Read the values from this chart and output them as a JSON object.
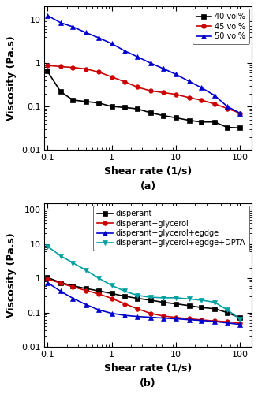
{
  "panel_a": {
    "title": "(a)",
    "xlabel": "Shear rate (1/s)",
    "ylabel": "Viscosity (Pa.s)",
    "xlim": [
      0.09,
      150
    ],
    "ylim": [
      0.01,
      20
    ],
    "yticks": [
      0.01,
      0.1,
      1,
      10
    ],
    "xticks": [
      0.1,
      1,
      10,
      100
    ],
    "series": [
      {
        "label": "40 vol%",
        "color": "#000000",
        "marker": "s",
        "x": [
          0.1,
          0.16,
          0.25,
          0.4,
          0.63,
          1.0,
          1.6,
          2.5,
          4.0,
          6.3,
          10,
          16,
          25,
          40,
          63,
          100
        ],
        "y": [
          0.65,
          0.22,
          0.14,
          0.13,
          0.12,
          0.1,
          0.095,
          0.088,
          0.072,
          0.062,
          0.055,
          0.048,
          0.044,
          0.044,
          0.033,
          0.032
        ]
      },
      {
        "label": "45 vol%",
        "color": "#cc0000",
        "marker": "o",
        "x": [
          0.1,
          0.16,
          0.25,
          0.4,
          0.63,
          1.0,
          1.6,
          2.5,
          4.0,
          6.3,
          10,
          16,
          25,
          40,
          63,
          100
        ],
        "y": [
          0.88,
          0.83,
          0.79,
          0.73,
          0.62,
          0.48,
          0.37,
          0.28,
          0.23,
          0.21,
          0.19,
          0.16,
          0.14,
          0.115,
          0.09,
          0.07
        ]
      },
      {
        "label": "50 vol%",
        "color": "#0000cc",
        "marker": "^",
        "x": [
          0.1,
          0.16,
          0.25,
          0.4,
          0.63,
          1.0,
          1.6,
          2.5,
          4.0,
          6.3,
          10,
          16,
          25,
          40,
          63,
          100
        ],
        "y": [
          12.5,
          8.5,
          6.8,
          5.0,
          3.8,
          2.8,
          1.9,
          1.4,
          1.0,
          0.75,
          0.55,
          0.38,
          0.27,
          0.18,
          0.1,
          0.07
        ]
      }
    ]
  },
  "panel_b": {
    "title": "(b)",
    "xlabel": "Shear rate (1/s)",
    "ylabel": "Viscosity (Pa.s)",
    "xlim": [
      0.09,
      150
    ],
    "ylim": [
      0.01,
      150
    ],
    "yticks": [
      0.01,
      0.1,
      1,
      10,
      100
    ],
    "xticks": [
      0.1,
      1,
      10,
      100
    ],
    "series": [
      {
        "label": "disperant",
        "color": "#000000",
        "marker": "s",
        "x": [
          0.1,
          0.16,
          0.25,
          0.4,
          0.63,
          1.0,
          1.6,
          2.5,
          4.0,
          6.3,
          10,
          16,
          25,
          40,
          63,
          100
        ],
        "y": [
          1.05,
          0.75,
          0.6,
          0.5,
          0.43,
          0.36,
          0.3,
          0.26,
          0.23,
          0.2,
          0.18,
          0.16,
          0.14,
          0.13,
          0.1,
          0.07
        ]
      },
      {
        "label": "disperant+glycerol",
        "color": "#cc0000",
        "marker": "o",
        "x": [
          0.1,
          0.16,
          0.25,
          0.4,
          0.63,
          1.0,
          1.6,
          2.5,
          4.0,
          6.3,
          10,
          16,
          25,
          40,
          63,
          100
        ],
        "y": [
          0.95,
          0.72,
          0.56,
          0.44,
          0.35,
          0.26,
          0.18,
          0.13,
          0.095,
          0.08,
          0.072,
          0.066,
          0.061,
          0.057,
          0.054,
          0.05
        ]
      },
      {
        "label": "disperant+glycerol+egdge",
        "color": "#0000cc",
        "marker": "^",
        "x": [
          0.1,
          0.16,
          0.25,
          0.4,
          0.63,
          1.0,
          1.6,
          2.5,
          4.0,
          6.3,
          10,
          16,
          25,
          40,
          63,
          100
        ],
        "y": [
          0.75,
          0.42,
          0.26,
          0.17,
          0.12,
          0.095,
          0.083,
          0.077,
          0.073,
          0.069,
          0.066,
          0.062,
          0.059,
          0.055,
          0.05,
          0.045
        ]
      },
      {
        "label": "disperant+glycerol+egdge+DPTA",
        "color": "#00a0a0",
        "marker": "v",
        "x": [
          0.1,
          0.16,
          0.25,
          0.4,
          0.63,
          1.0,
          1.6,
          2.5,
          4.0,
          6.3,
          10,
          16,
          25,
          40,
          63,
          100
        ],
        "y": [
          8.5,
          4.5,
          2.8,
          1.7,
          1.0,
          0.62,
          0.42,
          0.32,
          0.28,
          0.27,
          0.27,
          0.25,
          0.23,
          0.2,
          0.12,
          0.065
        ]
      }
    ]
  },
  "bg_color": "#ffffff",
  "label_fontsize": 9,
  "tick_fontsize": 8,
  "legend_fontsize": 7,
  "linewidth": 1.2,
  "markersize": 4
}
